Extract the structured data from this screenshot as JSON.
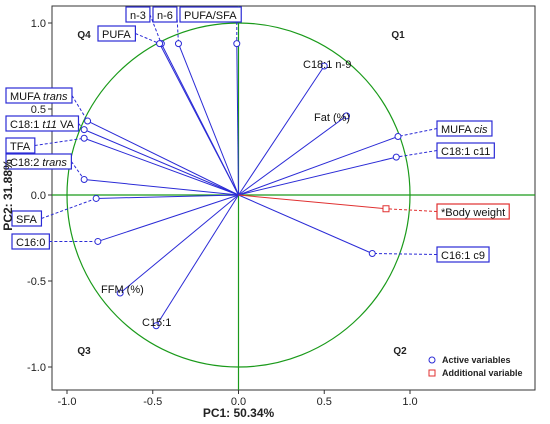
{
  "chart_data": {
    "type": "scatter",
    "subtype": "pca-correlation-circle",
    "xlabel": "PC1: 50.34%",
    "ylabel": "PC2: 31.88%",
    "xlim": [
      -1.0,
      1.0
    ],
    "ylim": [
      -1.0,
      1.0
    ],
    "x_ticks": [
      -1.0,
      -0.5,
      0.0,
      0.5,
      1.0
    ],
    "y_ticks": [
      -1.0,
      -0.5,
      0.0,
      0.5,
      1.0
    ],
    "x_tick_labels": [
      "-1.0",
      "-0.5",
      "0.0",
      "0.5",
      "1.0"
    ],
    "y_tick_labels": [
      "-1.0",
      "-0.5",
      "0.0",
      "0.5",
      "1.0"
    ],
    "grid": false,
    "quadrants": [
      "Q1",
      "Q2",
      "Q3",
      "Q4"
    ],
    "circle_color": "#1a9a1a",
    "axis_line_color": "#1a9a1a",
    "active_color": "#2b2bd6",
    "additional_color": "#e03030",
    "active_variables": [
      {
        "label": "n-3",
        "x": -0.45,
        "y": 0.88,
        "boxed": true
      },
      {
        "label": "n-6",
        "x": -0.35,
        "y": 0.88,
        "boxed": true
      },
      {
        "label": "PUFA/SFA",
        "x": -0.01,
        "y": 0.88,
        "boxed": true
      },
      {
        "label": "PUFA",
        "x": -0.46,
        "y": 0.88,
        "boxed": true
      },
      {
        "label": "C18:1 n-9",
        "x": 0.5,
        "y": 0.75,
        "boxed": false
      },
      {
        "label": "Fat (%)",
        "x": 0.63,
        "y": 0.46,
        "boxed": false
      },
      {
        "label": "MUFA trans",
        "x": -0.88,
        "y": 0.43,
        "boxed": true
      },
      {
        "label": "C18:1 t11 VA",
        "x": -0.9,
        "y": 0.38,
        "boxed": true
      },
      {
        "label": "TFA",
        "x": -0.9,
        "y": 0.33,
        "boxed": true
      },
      {
        "label": "MUFA cis",
        "x": 0.93,
        "y": 0.34,
        "boxed": true
      },
      {
        "label": "C18:1 c11",
        "x": 0.92,
        "y": 0.22,
        "boxed": true
      },
      {
        "label": "C18:2 trans",
        "x": -0.9,
        "y": 0.09,
        "boxed": true
      },
      {
        "label": "SFA",
        "x": -0.83,
        "y": -0.02,
        "boxed": true
      },
      {
        "label": "C16:0",
        "x": -0.82,
        "y": -0.27,
        "boxed": true
      },
      {
        "label": "C16:1 c9",
        "x": 0.78,
        "y": -0.34,
        "boxed": true
      },
      {
        "label": "FFM (%)",
        "x": -0.69,
        "y": -0.57,
        "boxed": false
      },
      {
        "label": "C15:1",
        "x": -0.48,
        "y": -0.76,
        "boxed": false
      }
    ],
    "additional_variables": [
      {
        "label": "*Body weight",
        "x": 0.86,
        "y": -0.08,
        "boxed": true
      }
    ],
    "legend": {
      "position": "bottom-right",
      "entries": [
        {
          "label": "Active variables",
          "marker": "circle",
          "color": "#2b2bd6"
        },
        {
          "label": "Additional variable",
          "marker": "square",
          "color": "#e03030"
        }
      ]
    }
  }
}
